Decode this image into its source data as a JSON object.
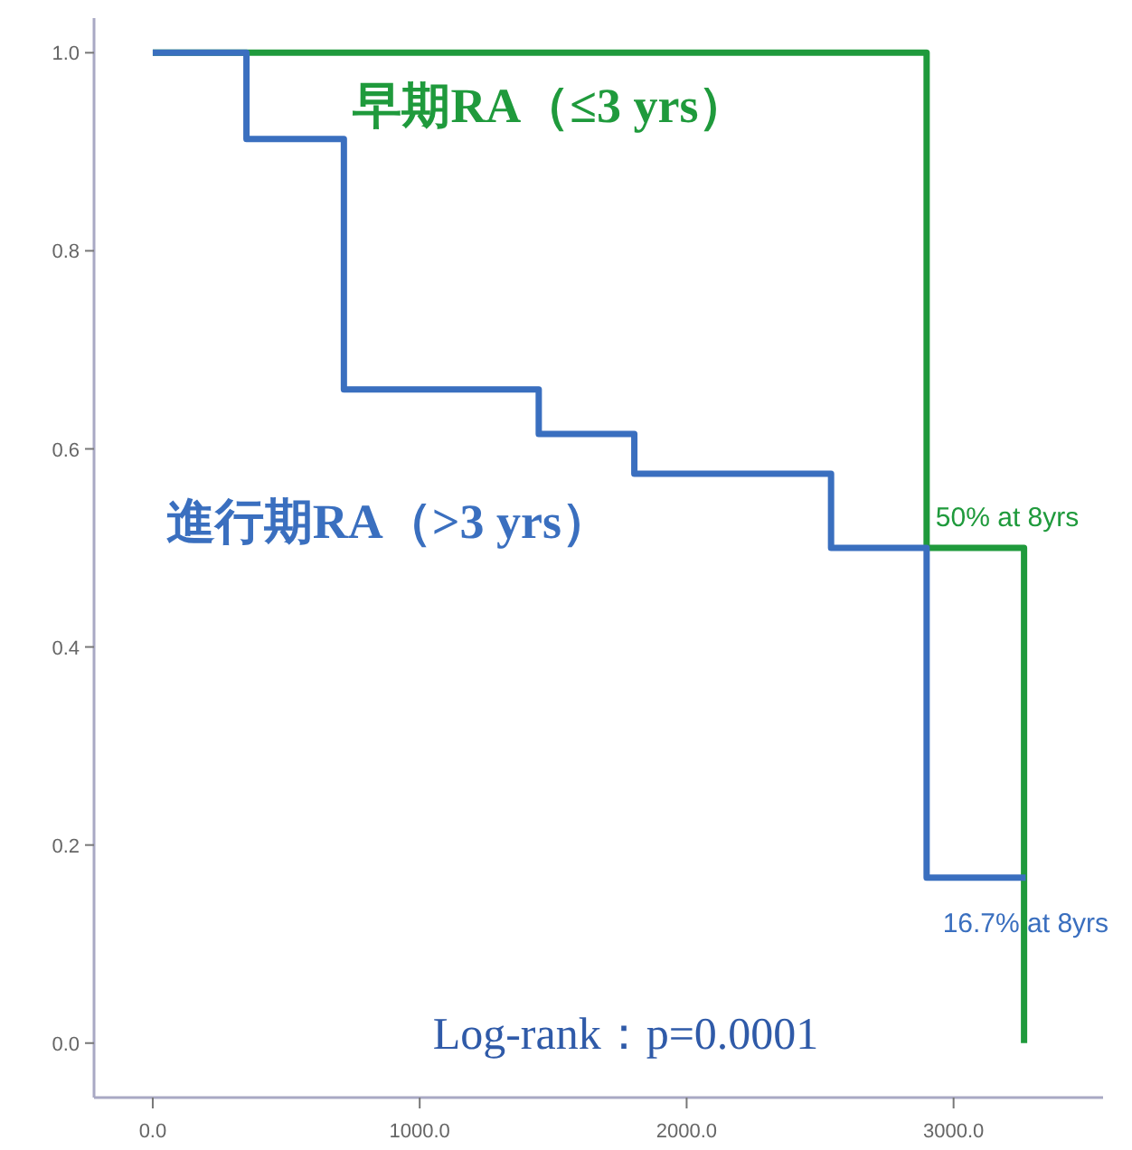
{
  "chart_data": {
    "type": "step",
    "series": [
      {
        "name": "早期RA（≤3 yrs）",
        "color": "#1f9a3c",
        "x": [
          0,
          2899,
          3264
        ],
        "values": [
          1.0,
          0.5,
          0.0
        ]
      },
      {
        "name": "進行期RA（>3 yrs）",
        "color": "#3a6fbf",
        "x": [
          0,
          351,
          716,
          1446,
          1804,
          2541,
          2899,
          3270
        ],
        "values": [
          1.0,
          0.913,
          0.66,
          0.615,
          0.575,
          0.5,
          0.167,
          0.167
        ]
      }
    ],
    "xlim": [
      -220,
      3560
    ],
    "ylim": [
      -0.055,
      1.035
    ],
    "xticks": [
      {
        "value": 0,
        "label": "0.0"
      },
      {
        "value": 1000,
        "label": "1000.0"
      },
      {
        "value": 2000,
        "label": "2000.0"
      },
      {
        "value": 3000,
        "label": "3000.0"
      }
    ],
    "yticks": [
      {
        "value": 0,
        "label": "0.0"
      },
      {
        "value": 0.2,
        "label": "0.2"
      },
      {
        "value": 0.4,
        "label": "0.4"
      },
      {
        "value": 0.6,
        "label": "0.6"
      },
      {
        "value": 0.8,
        "label": "0.8"
      },
      {
        "value": 1.0,
        "label": "1.0"
      }
    ],
    "annotations": [
      {
        "text": "50% at 8yrs",
        "x": 2899,
        "y": 0.5
      },
      {
        "text": "16.7% at 8yrs",
        "x": 3270,
        "y": 0.167
      },
      "Log-rank：p=0.0001"
    ],
    "legend": false,
    "grid": false
  }
}
